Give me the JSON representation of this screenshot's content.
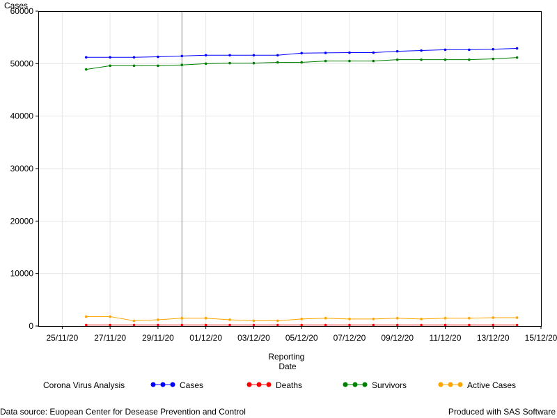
{
  "chart_data": {
    "type": "line",
    "ylabel": "Cases",
    "xlabel_lines": [
      "Reporting",
      "Date"
    ],
    "ylim": [
      0,
      60000
    ],
    "yticks": [
      "0",
      "10000",
      "20000",
      "30000",
      "40000",
      "50000",
      "60000"
    ],
    "xlim": [
      "2020-11-24",
      "2020-12-15"
    ],
    "xtick_labels": [
      "25/11/20",
      "27/11/20",
      "29/11/20",
      "01/12/20",
      "03/12/20",
      "05/12/20",
      "07/12/20",
      "09/12/20",
      "11/12/20",
      "13/12/20",
      "15/12/20"
    ],
    "grid": true,
    "reference_line_x": "2020-11-30",
    "x": [
      "2020-11-26",
      "2020-11-27",
      "2020-11-28",
      "2020-11-29",
      "2020-11-30",
      "2020-12-01",
      "2020-12-02",
      "2020-12-03",
      "2020-12-04",
      "2020-12-05",
      "2020-12-06",
      "2020-12-07",
      "2020-12-08",
      "2020-12-09",
      "2020-12-10",
      "2020-12-11",
      "2020-12-12",
      "2020-12-13",
      "2020-12-14"
    ],
    "series": [
      {
        "name": "Cases",
        "color": "#0000ff",
        "values": [
          51200,
          51200,
          51200,
          51300,
          51450,
          51600,
          51600,
          51600,
          51600,
          52000,
          52050,
          52100,
          52100,
          52350,
          52500,
          52650,
          52650,
          52750,
          52900
        ]
      },
      {
        "name": "Deaths",
        "color": "#ff0000",
        "values": [
          200,
          200,
          200,
          200,
          200,
          200,
          200,
          200,
          200,
          200,
          200,
          200,
          200,
          200,
          200,
          200,
          200,
          200,
          200
        ]
      },
      {
        "name": "Survivors",
        "color": "#008000",
        "values": [
          48900,
          49600,
          49600,
          49600,
          49750,
          50000,
          50100,
          50100,
          50250,
          50250,
          50500,
          50500,
          50500,
          50750,
          50750,
          50750,
          50750,
          50900,
          51150
        ]
      },
      {
        "name": "Active Cases",
        "color": "#ffa500",
        "values": [
          1800,
          1800,
          1000,
          1200,
          1500,
          1500,
          1200,
          1000,
          1000,
          1350,
          1500,
          1350,
          1350,
          1500,
          1350,
          1500,
          1500,
          1600,
          1600
        ]
      }
    ],
    "legend": {
      "title": "Corona Virus Analysis",
      "placement": "bottom"
    }
  },
  "footer": {
    "left": "Data source: Euopean Center for Desease Prevention and Control",
    "right": "Produced with SAS Software"
  }
}
